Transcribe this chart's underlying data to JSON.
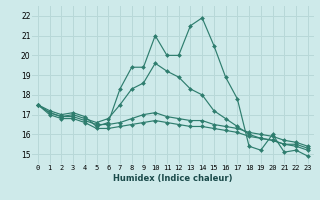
{
  "xlabel": "Humidex (Indice chaleur)",
  "background_color": "#ceeaea",
  "grid_color": "#b8d8d8",
  "line_color": "#2e7d6e",
  "xlim": [
    -0.5,
    23.5
  ],
  "ylim": [
    14.5,
    22.5
  ],
  "yticks": [
    15,
    16,
    17,
    18,
    19,
    20,
    21,
    22
  ],
  "xticks": [
    0,
    1,
    2,
    3,
    4,
    5,
    6,
    7,
    8,
    9,
    10,
    11,
    12,
    13,
    14,
    15,
    16,
    17,
    18,
    19,
    20,
    21,
    22,
    23
  ],
  "series": [
    [
      17.5,
      17.2,
      17.0,
      17.1,
      16.9,
      16.4,
      16.6,
      18.3,
      19.4,
      19.4,
      21.0,
      20.0,
      20.0,
      21.5,
      21.9,
      20.5,
      18.9,
      17.8,
      15.4,
      15.2,
      16.0,
      15.1,
      15.2,
      14.9
    ],
    [
      17.5,
      17.1,
      16.9,
      17.0,
      16.8,
      16.6,
      16.8,
      17.5,
      18.3,
      18.6,
      19.6,
      19.2,
      18.9,
      18.3,
      18.0,
      17.2,
      16.8,
      16.4,
      16.0,
      15.8,
      15.7,
      15.5,
      15.4,
      15.2
    ],
    [
      17.5,
      17.1,
      16.9,
      16.9,
      16.7,
      16.5,
      16.5,
      16.6,
      16.8,
      17.0,
      17.1,
      16.9,
      16.8,
      16.7,
      16.7,
      16.5,
      16.4,
      16.3,
      16.1,
      16.0,
      15.9,
      15.7,
      15.6,
      15.4
    ],
    [
      17.5,
      17.0,
      16.8,
      16.8,
      16.6,
      16.3,
      16.3,
      16.4,
      16.5,
      16.6,
      16.7,
      16.6,
      16.5,
      16.4,
      16.4,
      16.3,
      16.2,
      16.1,
      15.9,
      15.8,
      15.7,
      15.5,
      15.5,
      15.3
    ]
  ]
}
